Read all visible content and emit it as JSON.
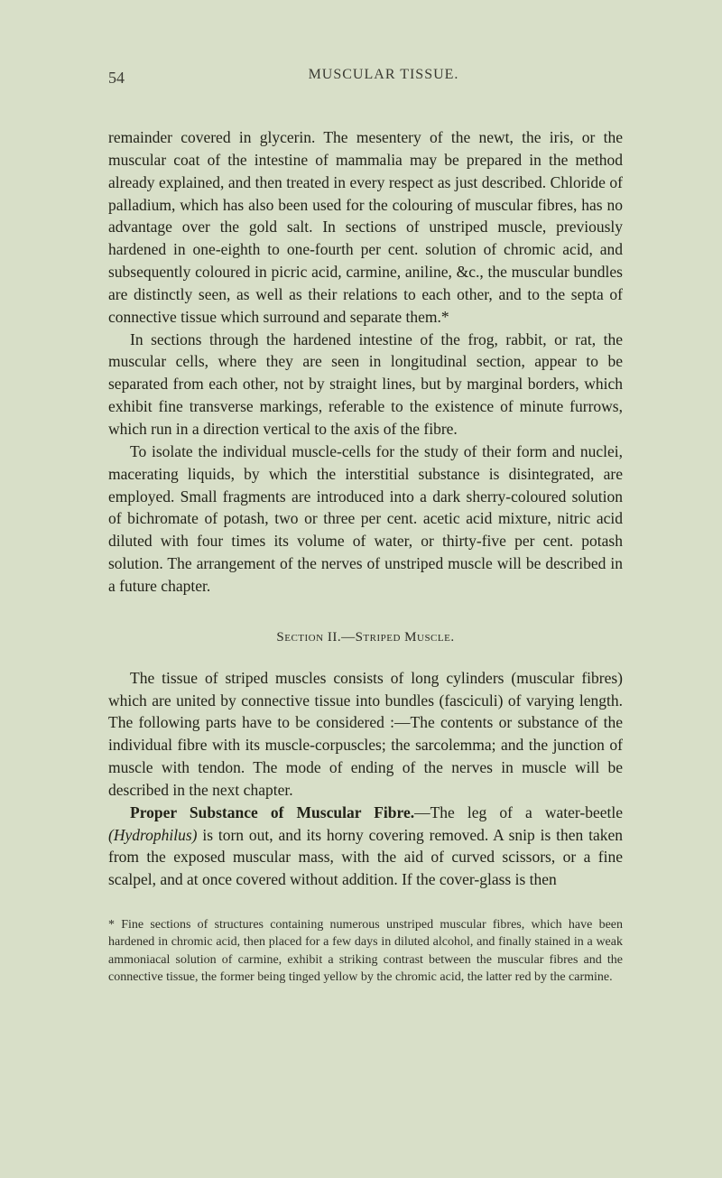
{
  "page_number": "54",
  "running_header": "MUSCULAR TISSUE.",
  "paragraphs": {
    "p1": "remainder covered in glycerin. The mesentery of the newt, the iris, or the muscular coat of the intestine of mammalia may be prepared in the method already explained, and then treated in every respect as just described. Chloride of palladium, which has also been used for the colouring of muscular fibres, has no advantage over the gold salt. In sections of unstriped muscle, previously hardened in one-eighth to one-fourth per cent. solution of chromic acid, and subsequently coloured in picric acid, carmine, aniline, &c., the muscular bundles are distinctly seen, as well as their relations to each other, and to the septa of connective tissue which surround and separate them.*",
    "p2": "In sections through the hardened intestine of the frog, rabbit, or rat, the muscular cells, where they are seen in longitudinal section, appear to be separated from each other, not by straight lines, but by marginal borders, which exhibit fine transverse markings, referable to the existence of minute furrows, which run in a direction vertical to the axis of the fibre.",
    "p3": "To isolate the individual muscle-cells for the study of their form and nuclei, macerating liquids, by which the interstitial substance is disintegrated, are employed. Small fragments are introduced into a dark sherry-coloured solution of bichromate of potash, two or three per cent. acetic acid mixture, nitric acid diluted with four times its volume of water, or thirty-five per cent. potash solution. The arrangement of the nerves of unstriped muscle will be described in a future chapter.",
    "section_heading": "Section II.—Striped Muscle.",
    "p4": "The tissue of striped muscles consists of long cylinders (muscular fibres) which are united by connective tissue into bundles (fasciculi) of varying length. The following parts have to be considered :—The contents or substance of the individual fibre with its muscle-corpuscles; the sarcolemma; and the junction of muscle with tendon. The mode of ending of the nerves in muscle will be described in the next chapter.",
    "p5_lead": "Proper Substance of Muscular Fibre.",
    "p5_body": "—The leg of a water-beetle ",
    "p5_italic": "(Hydrophilus)",
    "p5_rest": " is torn out, and its horny covering removed. A snip is then taken from the exposed muscular mass, with the aid of curved scissors, or a fine scalpel, and at once covered without addition. If the cover-glass is then",
    "footnote": "* Fine sections of structures containing numerous unstriped muscular fibres, which have been hardened in chromic acid, then placed for a few days in diluted alcohol, and finally stained in a weak ammoniacal solution of carmine, exhibit a striking contrast between the muscular fibres and the connective tissue, the former being tinged yellow by the chromic acid, the latter red by the carmine."
  },
  "colors": {
    "background": "#d8dfc8",
    "text": "#222218"
  }
}
